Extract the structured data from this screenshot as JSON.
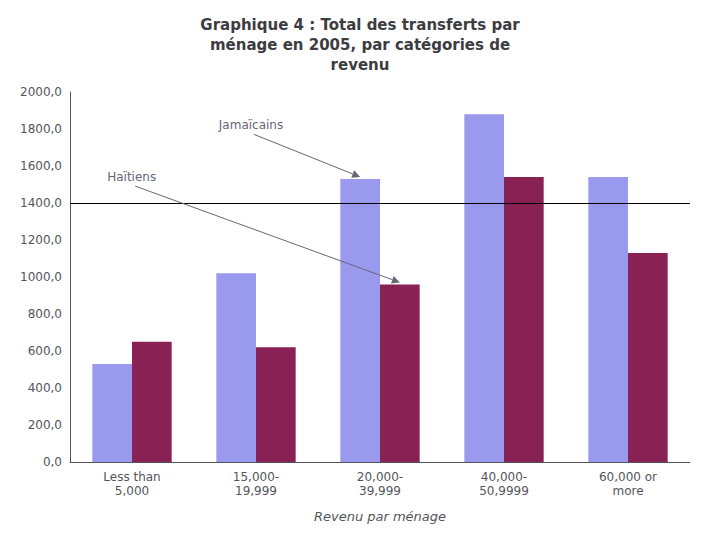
{
  "chart_data": {
    "type": "bar",
    "title": "Graphique 4 : Total des transferts par\nménage en 2005, par catégories de\nrevenu",
    "xlabel": "Revenu par ménage",
    "categories": [
      "Less than\n5,000",
      "15,000-\n19,999",
      "20,000-\n39,999",
      "40,000-\n50,9999",
      "60,000 or\nmore"
    ],
    "series": [
      {
        "name": "Jamaïcains",
        "color": "#9999EE",
        "values": [
          530,
          1020,
          1530,
          1880,
          1540
        ]
      },
      {
        "name": "Haïtiens",
        "color": "#882255",
        "values": [
          650,
          620,
          960,
          1540,
          1130
        ]
      }
    ],
    "ylim": [
      0,
      2000
    ],
    "yticks": [
      {
        "value": 0,
        "label": "0,0"
      },
      {
        "value": 200,
        "label": "200,0"
      },
      {
        "value": 400,
        "label": "400,0"
      },
      {
        "value": 600,
        "label": "600,0"
      },
      {
        "value": 800,
        "label": "800,0"
      },
      {
        "value": 1000,
        "label": "1000,0"
      },
      {
        "value": 1200,
        "label": "1200,0"
      },
      {
        "value": 1400,
        "label": "1400,0"
      },
      {
        "value": 1600,
        "label": "1600,0"
      },
      {
        "value": 1800,
        "label": "1800,0"
      },
      {
        "value": 2000,
        "label": "2000,0"
      }
    ],
    "hline": 1400,
    "annotations": [
      "Jamaïcains",
      "Haïtiens"
    ],
    "grid": false
  }
}
